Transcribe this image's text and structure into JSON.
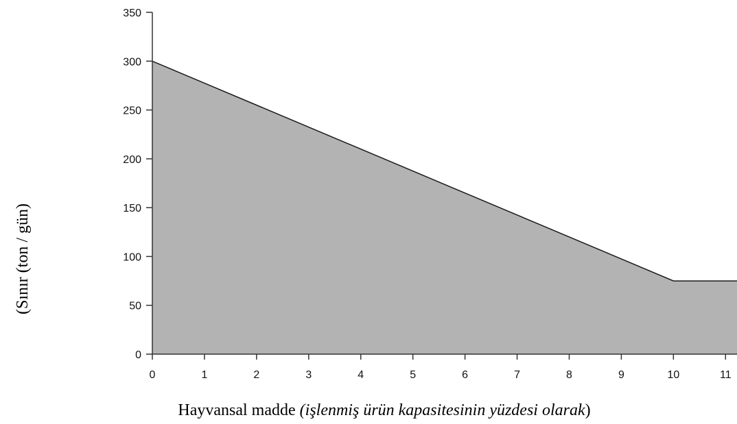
{
  "chart_data": {
    "type": "area",
    "x_label": {
      "text": "Hayvansal madde ",
      "italic": "(işlenmiş ürün kapasitesinin yüzdesi olarak",
      "end": ")"
    },
    "y_label": "(Sınır (ton / gün)",
    "x": [
      0,
      10,
      11.22
    ],
    "values": [
      300,
      75,
      75
    ],
    "color": "#b3b3b3",
    "line_color": "#1a1a1a",
    "xlim": [
      0,
      11.22
    ],
    "xticks": [
      0,
      1,
      2,
      3,
      4,
      5,
      6,
      7,
      8,
      9,
      10,
      11
    ],
    "ylim": [
      0,
      350
    ],
    "yticks": [
      0,
      50,
      100,
      150,
      200,
      250,
      300,
      350
    ]
  }
}
